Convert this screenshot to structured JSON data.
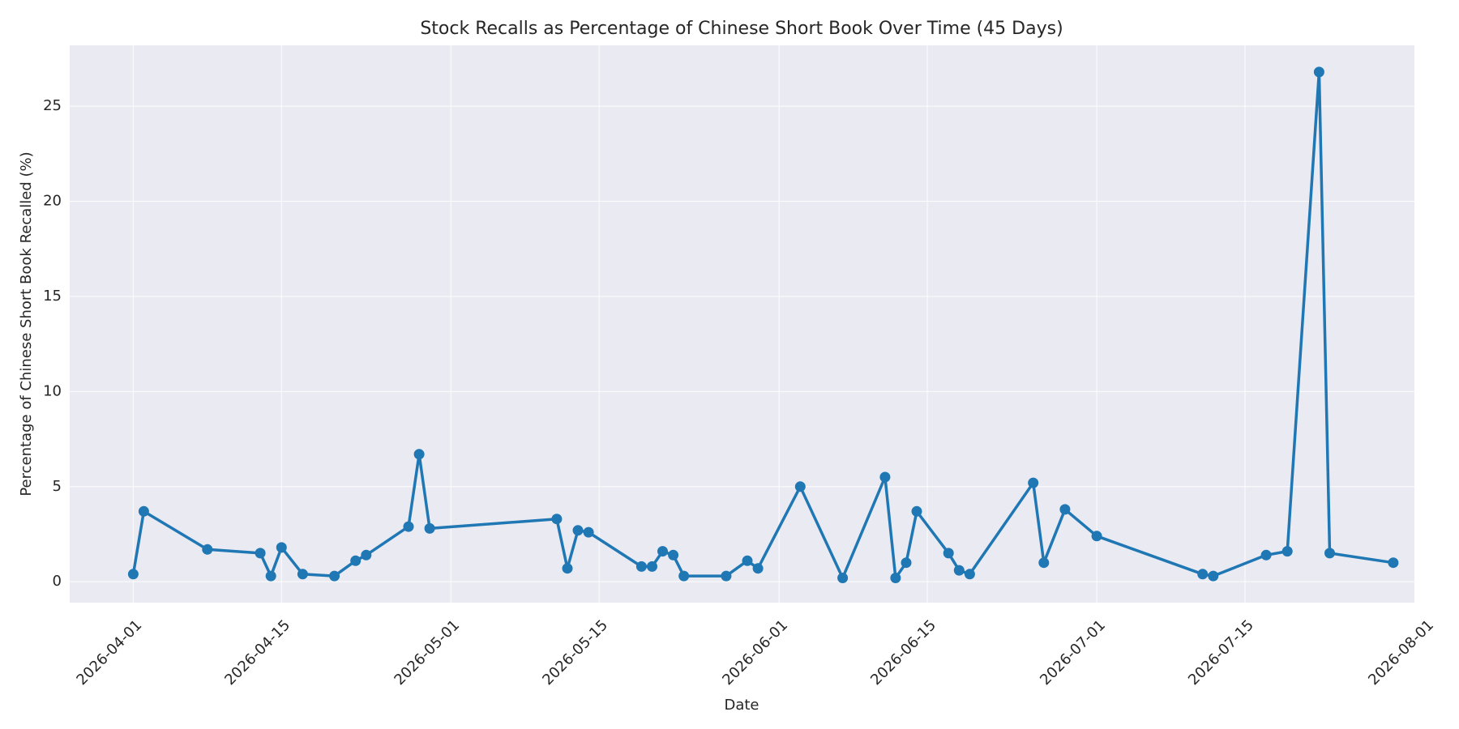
{
  "chart_data": {
    "type": "line",
    "title": "Stock Recalls as Percentage of Chinese Short Book Over Time (45 Days)",
    "xlabel": "Date",
    "ylabel": "Percentage of Chinese Short Book Recalled (%)",
    "xlim": [
      "2026-03-26",
      "2026-07-31"
    ],
    "ylim": [
      -1.1,
      28.2
    ],
    "x_ticks": [
      "2026-04-01",
      "2026-04-15",
      "2026-05-01",
      "2026-05-15",
      "2026-06-01",
      "2026-06-15",
      "2026-07-01",
      "2026-07-15",
      "2026-08-01"
    ],
    "y_ticks": [
      0,
      5,
      10,
      15,
      20,
      25
    ],
    "grid": true,
    "colors": {
      "line": "#1f77b4",
      "background": "#eaeaf2",
      "grid": "#ffffff"
    },
    "series": [
      {
        "x": [
          "2026-04-01",
          "2026-04-02",
          "2026-04-08",
          "2026-04-13",
          "2026-04-14",
          "2026-04-15",
          "2026-04-17",
          "2026-04-20",
          "2026-04-22",
          "2026-04-23",
          "2026-04-27",
          "2026-04-28",
          "2026-04-29",
          "2026-05-11",
          "2026-05-12",
          "2026-05-13",
          "2026-05-14",
          "2026-05-19",
          "2026-05-20",
          "2026-05-21",
          "2026-05-22",
          "2026-05-23",
          "2026-05-27",
          "2026-05-29",
          "2026-05-30",
          "2026-06-03",
          "2026-06-07",
          "2026-06-11",
          "2026-06-12",
          "2026-06-13",
          "2026-06-14",
          "2026-06-17",
          "2026-06-18",
          "2026-06-19",
          "2026-06-25",
          "2026-06-26",
          "2026-06-28",
          "2026-07-01",
          "2026-07-11",
          "2026-07-12",
          "2026-07-17",
          "2026-07-19",
          "2026-07-22",
          "2026-07-23",
          "2026-07-29"
        ],
        "y": [
          0.4,
          3.7,
          1.7,
          1.5,
          0.3,
          1.8,
          0.4,
          0.3,
          1.1,
          1.4,
          2.9,
          6.7,
          2.8,
          3.3,
          0.7,
          2.7,
          2.6,
          0.8,
          0.8,
          1.6,
          1.4,
          0.3,
          0.3,
          1.1,
          0.7,
          5.0,
          0.2,
          5.5,
          0.2,
          1.0,
          3.7,
          1.5,
          0.6,
          0.4,
          5.2,
          1.0,
          3.8,
          2.4,
          0.4,
          0.3,
          1.4,
          1.6,
          26.8,
          1.5,
          1.0
        ]
      }
    ]
  }
}
